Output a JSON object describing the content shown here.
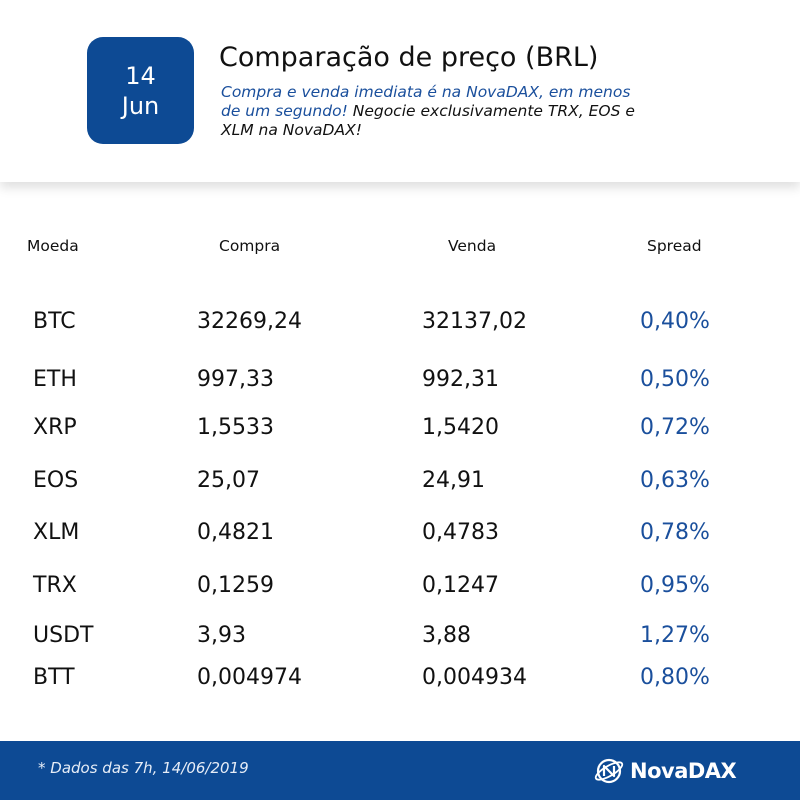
{
  "date": {
    "day": "14",
    "month": "Jun"
  },
  "title": "Comparação de preço (BRL)",
  "subtitle": {
    "highlight": "Compra e venda imediata é na NovaDAX, em menos de um segundo!",
    "rest": "Negocie exclusivamente TRX, EOS e XLM na NovaDAX!"
  },
  "columns": {
    "coin": "Moeda",
    "buy": "Compra",
    "sell": "Venda",
    "spread": "Spread"
  },
  "rows": [
    {
      "coin": "BTC",
      "buy": "32269,24",
      "sell": "32137,02",
      "spread": "0,40%"
    },
    {
      "coin": "ETH",
      "buy": "997,33",
      "sell": "992,31",
      "spread": "0,50%"
    },
    {
      "coin": "XRP",
      "buy": "1,5533",
      "sell": "1,5420",
      "spread": "0,72%"
    },
    {
      "coin": "EOS",
      "buy": "25,07",
      "sell": "24,91",
      "spread": "0,63%"
    },
    {
      "coin": "XLM",
      "buy": "0,4821",
      "sell": "0,4783",
      "spread": "0,78%"
    },
    {
      "coin": "TRX",
      "buy": "0,1259",
      "sell": "0,1247",
      "spread": "0,95%"
    },
    {
      "coin": "USDT",
      "buy": "3,93",
      "sell": "3,88",
      "spread": "1,27%"
    },
    {
      "coin": "BTT",
      "buy": "0,004974",
      "sell": "0,004934",
      "spread": "0,80%"
    }
  ],
  "footer": {
    "note": "* Dados das 7h, 14/06/2019",
    "brand": "NovaDAX"
  },
  "colors": {
    "brand_blue": "#0d4a94",
    "spread_blue": "#1a4f9c"
  },
  "icons": {
    "logo": "novadax-logo-icon"
  }
}
